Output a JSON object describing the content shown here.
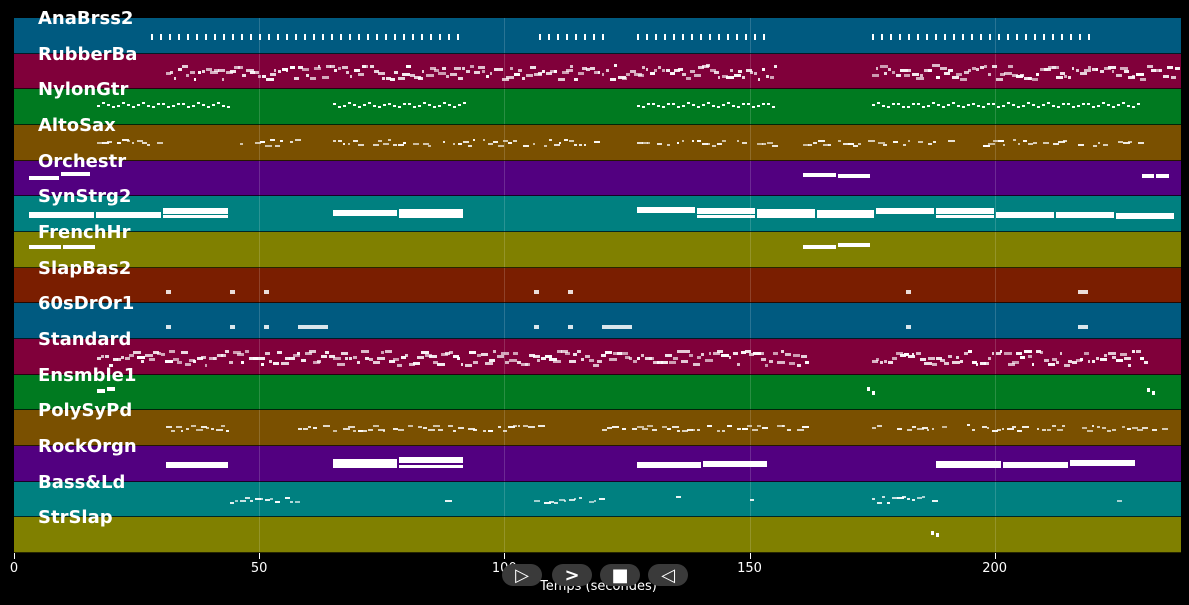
{
  "tracks": [
    {
      "name": "AnaBrss2",
      "color": "#005a80"
    },
    {
      "name": "RubberBa",
      "color": "#80003a"
    },
    {
      "name": "NylonGtr",
      "color": "#007a20"
    },
    {
      "name": "AltoSax",
      "color": "#7a5000"
    },
    {
      "name": "Orchestr",
      "color": "#520080"
    },
    {
      "name": "SynStrg2",
      "color": "#008080"
    },
    {
      "name": "FrenchHr",
      "color": "#808000"
    },
    {
      "name": "SlapBas2",
      "color": "#7a1e00"
    },
    {
      "name": "60sDrOr1",
      "color": "#005a80"
    },
    {
      "name": "Standard",
      "color": "#80003a"
    },
    {
      "name": "Ensmble1",
      "color": "#007a20"
    },
    {
      "name": "PolySyPd",
      "color": "#7a5000"
    },
    {
      "name": "RockOrgn",
      "color": "#520080"
    },
    {
      "name": "Bass&Ld",
      "color": "#008080"
    },
    {
      "name": "StrSlap",
      "color": "#808000"
    }
  ],
  "axis": {
    "xlabel": "Temps (secondes)",
    "min": 0,
    "max": 238,
    "ticks": [
      0,
      50,
      100,
      150,
      200
    ]
  },
  "controls": {
    "play_label": "▷",
    "forward_label": ">",
    "stop_label": "■",
    "back_label": "◁"
  },
  "notes": [
    {
      "track": 0,
      "segments": [
        [
          28,
          92
        ],
        [
          107,
          120
        ],
        [
          127,
          153
        ],
        [
          175,
          220
        ]
      ],
      "style": "ticks"
    },
    {
      "track": 1,
      "segments": [
        [
          31,
          155
        ],
        [
          175,
          230
        ],
        [
          231,
          237
        ]
      ],
      "style": "dense"
    },
    {
      "track": 2,
      "segments": [
        [
          17,
          44
        ],
        [
          65,
          92
        ],
        [
          127,
          155
        ],
        [
          175,
          230
        ]
      ],
      "style": "wave"
    },
    {
      "track": 3,
      "segments": [
        [
          17,
          30
        ],
        [
          45,
          58
        ],
        [
          65,
          107
        ],
        [
          108,
          120
        ],
        [
          127,
          155
        ],
        [
          161,
          231
        ]
      ],
      "style": "sparse"
    },
    {
      "track": 4,
      "segments": [
        [
          3,
          16
        ],
        [
          161,
          175
        ],
        [
          230,
          236
        ]
      ],
      "style": "block"
    },
    {
      "track": 5,
      "segments": [
        [
          3,
          44
        ],
        [
          65,
          92
        ],
        [
          127,
          237
        ]
      ],
      "style": "thick"
    },
    {
      "track": 6,
      "segments": [
        [
          3,
          17
        ],
        [
          161,
          175
        ]
      ],
      "style": "block"
    },
    {
      "track": 7,
      "segments": [
        [
          31,
          32
        ],
        [
          44,
          45
        ],
        [
          51,
          52
        ],
        [
          106,
          107
        ],
        [
          113,
          114
        ],
        [
          182,
          183
        ],
        [
          217,
          219
        ]
      ],
      "style": "dot"
    },
    {
      "track": 8,
      "segments": [
        [
          31,
          32
        ],
        [
          44,
          45
        ],
        [
          51,
          52
        ],
        [
          58,
          64
        ],
        [
          106,
          107
        ],
        [
          113,
          114
        ],
        [
          120,
          126
        ],
        [
          182,
          183
        ],
        [
          217,
          219
        ]
      ],
      "style": "dot"
    },
    {
      "track": 9,
      "segments": [
        [
          17,
          162
        ],
        [
          175,
          231
        ]
      ],
      "style": "dense"
    },
    {
      "track": 10,
      "segments": [
        [
          17,
          21
        ],
        [
          174,
          176
        ],
        [
          231,
          233
        ]
      ],
      "style": "block"
    },
    {
      "track": 11,
      "segments": [
        [
          31,
          44
        ],
        [
          58,
          107
        ],
        [
          120,
          161
        ],
        [
          175,
          237
        ]
      ],
      "style": "sparse"
    },
    {
      "track": 12,
      "segments": [
        [
          31,
          44
        ],
        [
          65,
          92
        ],
        [
          127,
          154
        ],
        [
          188,
          229
        ]
      ],
      "style": "thick"
    },
    {
      "track": 13,
      "segments": [
        [
          44,
          58
        ],
        [
          88,
          89
        ],
        [
          106,
          120
        ],
        [
          135,
          136
        ],
        [
          150,
          151
        ],
        [
          175,
          188
        ],
        [
          198,
          199
        ],
        [
          212,
          213
        ],
        [
          225,
          226
        ]
      ],
      "style": "sparse"
    },
    {
      "track": 14,
      "segments": [
        [
          187,
          189
        ]
      ],
      "style": "block"
    }
  ]
}
